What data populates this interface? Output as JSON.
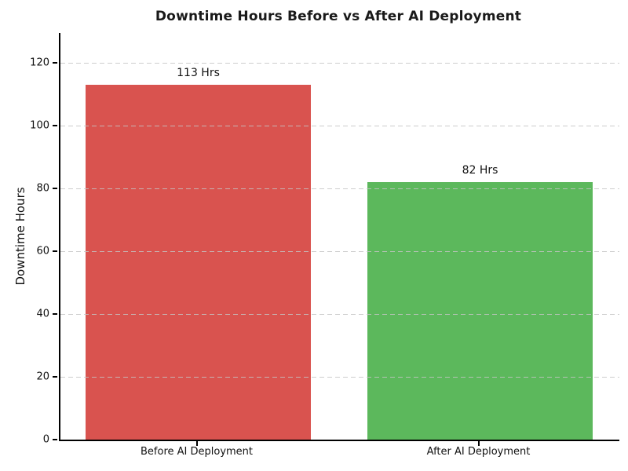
{
  "chart_data": {
    "type": "bar",
    "title": "Downtime Hours Before vs After AI Deployment",
    "categories": [
      "Before AI Deployment",
      "After AI Deployment"
    ],
    "values": [
      113,
      82
    ],
    "value_labels": [
      "113 Hrs",
      "82 Hrs"
    ],
    "bar_colors": [
      "#d9534f",
      "#5cb85c"
    ],
    "xlabel": "",
    "ylabel": "Downtime Hours",
    "yticks": [
      0,
      20,
      40,
      60,
      80,
      100,
      120
    ],
    "ylim": [
      0,
      129.5
    ],
    "grid": "horizontal-dashed",
    "grid_color": "#c4c4c4",
    "legend": "none",
    "background_color": "#ffffff",
    "spine_color": "#000000"
  }
}
